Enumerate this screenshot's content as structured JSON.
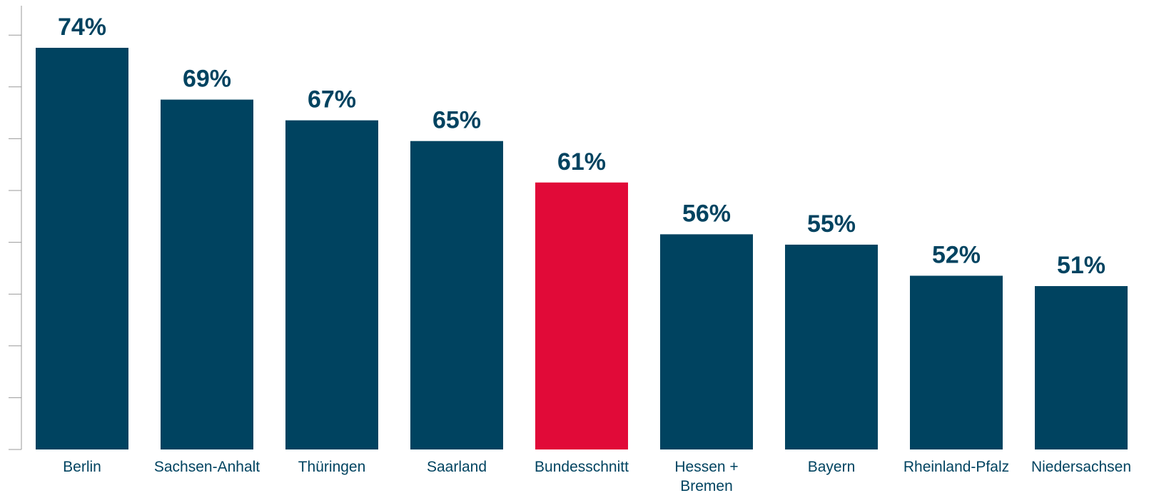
{
  "chart_data": {
    "type": "bar",
    "title": "",
    "xlabel": "",
    "ylabel": "",
    "categories": [
      "Berlin",
      "Sachsen-Anhalt",
      "Thüringen",
      "Saarland",
      "Bundesschnitt",
      "Hessen + Bremen",
      "Bayern",
      "Rheinland-Pfalz",
      "Niedersachsen"
    ],
    "category_lines": [
      [
        "Berlin"
      ],
      [
        "Sachsen-Anhalt"
      ],
      [
        "Thüringen"
      ],
      [
        "Saarland"
      ],
      [
        "Bundesschnitt"
      ],
      [
        "Hessen +",
        "Bremen"
      ],
      [
        "Bayern"
      ],
      [
        "Rheinland-Pfalz"
      ],
      [
        "Niedersachsen"
      ]
    ],
    "values": [
      74,
      69,
      67,
      65,
      61,
      56,
      55,
      52,
      51
    ],
    "value_labels": [
      "74%",
      "69%",
      "67%",
      "65%",
      "61%",
      "56%",
      "55%",
      "52%",
      "51%"
    ],
    "highlight_index": 4,
    "ylim": [
      35,
      78
    ],
    "y_axis_tick_labels": false,
    "grid": false,
    "legend": "none",
    "colors": {
      "bar": "#004360",
      "highlight": "#E10A38",
      "label_text": "#004360",
      "category_text": "#004360",
      "axis": "#999999"
    }
  }
}
